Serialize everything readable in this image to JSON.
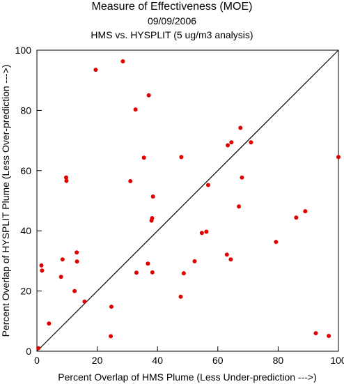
{
  "header": {
    "title": "Measure of Effectiveness (MOE)",
    "date": "09/09/2006",
    "subtitle": "HMS vs. HYSPLIT  (5 ug/m3 analysis)"
  },
  "chart_data": {
    "type": "scatter",
    "xlabel": "Percent Overlap of HMS Plume (Less Under-prediction --->)",
    "ylabel": "Percent Overlap of HYSPLIT Plume (Less Over-prediction --->)",
    "xlim": [
      0,
      100
    ],
    "ylim": [
      0,
      100
    ],
    "xticks": [
      "0",
      "20",
      "40",
      "60",
      "80",
      "100"
    ],
    "yticks": [
      "0",
      "20",
      "40",
      "60",
      "80",
      "100"
    ],
    "grid": false,
    "reference_line": "diagonal y = x",
    "marker_color": "#e00000",
    "x": [
      0.5,
      1.5,
      1.7,
      4.0,
      8.0,
      8.5,
      9.7,
      9.8,
      12.5,
      13.2,
      13.3,
      15.8,
      19.5,
      24.5,
      24.7,
      28.5,
      31.0,
      32.7,
      33.0,
      35.5,
      36.8,
      37.1,
      38.0,
      38.2,
      38.3,
      38.5,
      47.7,
      47.9,
      48.7,
      52.3,
      54.7,
      56.2,
      56.8,
      63.0,
      63.3,
      64.3,
      64.5,
      67.0,
      67.5,
      68.0,
      71.0,
      79.3,
      86.0,
      89.0,
      92.5,
      96.8,
      100.0
    ],
    "y": [
      1.0,
      28.5,
      26.8,
      9.2,
      24.7,
      30.5,
      57.7,
      56.6,
      20.0,
      32.8,
      29.8,
      16.5,
      93.5,
      5.0,
      14.8,
      96.3,
      56.5,
      80.3,
      26.1,
      64.3,
      29.1,
      85.0,
      43.4,
      44.2,
      26.2,
      51.4,
      18.1,
      64.5,
      25.9,
      29.9,
      39.3,
      39.7,
      55.2,
      32.1,
      68.4,
      30.5,
      69.4,
      48.1,
      74.2,
      57.7,
      69.4,
      36.3,
      44.4,
      46.5,
      6.0,
      5.1,
      64.5
    ]
  }
}
